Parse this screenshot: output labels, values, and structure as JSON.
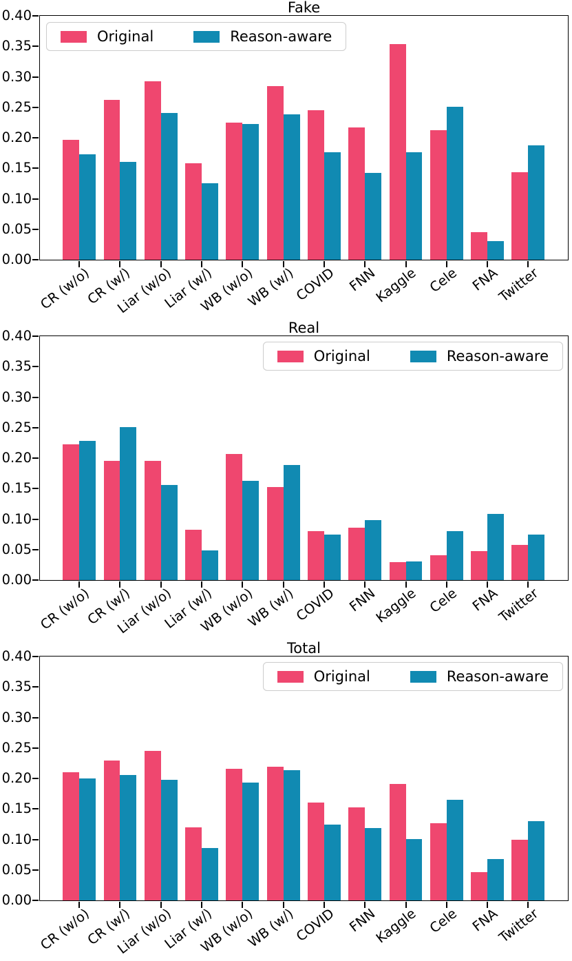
{
  "figure": {
    "kind": "grouped-bar-figure",
    "background": "#ffffff",
    "axis_color": "#000000"
  },
  "colors": {
    "original": "#EF476F",
    "reason_aware": "#118AB2"
  },
  "legend": {
    "labels": [
      "Original",
      "Reason-aware"
    ]
  },
  "y_axis": {
    "tick_labels": [
      "0.40",
      "0.35",
      "0.30",
      "0.25",
      "0.20",
      "0.15",
      "0.10",
      "0.05",
      "0.00"
    ],
    "min": 0.0,
    "max": 0.4
  },
  "chart_data": [
    {
      "type": "bar",
      "title": "Fake",
      "categories": [
        "CR (w/o)",
        "CR (w/)",
        "Liar (w/o)",
        "Liar (w/)",
        "WB (w/o)",
        "WB (w/)",
        "COVID",
        "FNN",
        "Kaggle",
        "Cele",
        "FNA",
        "Twitter"
      ],
      "series": [
        {
          "name": "Original",
          "color": "#EF476F",
          "values": [
            0.197,
            0.262,
            0.293,
            0.158,
            0.225,
            0.285,
            0.245,
            0.217,
            0.354,
            0.213,
            0.045,
            0.144
          ]
        },
        {
          "name": "Reason-aware",
          "color": "#118AB2",
          "values": [
            0.173,
            0.161,
            0.241,
            0.125,
            0.223,
            0.238,
            0.176,
            0.142,
            0.176,
            0.251,
            0.03,
            0.188
          ]
        }
      ],
      "xlabel": "",
      "ylabel": "",
      "ylim": [
        0.0,
        0.4
      ],
      "grid": false,
      "legend_position": "upper-left"
    },
    {
      "type": "bar",
      "title": "Real",
      "categories": [
        "CR (w/o)",
        "CR (w/)",
        "Liar (w/o)",
        "Liar (w/)",
        "WB (w/o)",
        "WB (w/)",
        "COVID",
        "FNN",
        "Kaggle",
        "Cele",
        "FNA",
        "Twitter"
      ],
      "series": [
        {
          "name": "Original",
          "color": "#EF476F",
          "values": [
            0.223,
            0.196,
            0.196,
            0.082,
            0.207,
            0.152,
            0.08,
            0.086,
            0.029,
            0.041,
            0.048,
            0.058
          ]
        },
        {
          "name": "Reason-aware",
          "color": "#118AB2",
          "values": [
            0.228,
            0.251,
            0.156,
            0.049,
            0.163,
            0.189,
            0.075,
            0.098,
            0.031,
            0.08,
            0.109,
            0.075
          ]
        }
      ],
      "xlabel": "",
      "ylabel": "",
      "ylim": [
        0.0,
        0.4
      ],
      "grid": false,
      "legend_position": "upper-right"
    },
    {
      "type": "bar",
      "title": "Total",
      "categories": [
        "CR (w/o)",
        "CR (w/)",
        "Liar (w/o)",
        "Liar (w/)",
        "WB (w/o)",
        "WB (w/)",
        "COVID",
        "FNN",
        "Kaggle",
        "Cele",
        "FNA",
        "Twitter"
      ],
      "series": [
        {
          "name": "Original",
          "color": "#EF476F",
          "values": [
            0.21,
            0.229,
            0.245,
            0.12,
            0.216,
            0.219,
            0.161,
            0.152,
            0.191,
            0.127,
            0.046,
            0.1
          ]
        },
        {
          "name": "Reason-aware",
          "color": "#118AB2",
          "values": [
            0.2,
            0.206,
            0.198,
            0.086,
            0.193,
            0.214,
            0.124,
            0.119,
            0.101,
            0.165,
            0.068,
            0.13
          ]
        }
      ],
      "xlabel": "",
      "ylabel": "",
      "ylim": [
        0.0,
        0.4
      ],
      "grid": false,
      "legend_position": "upper-right"
    }
  ]
}
